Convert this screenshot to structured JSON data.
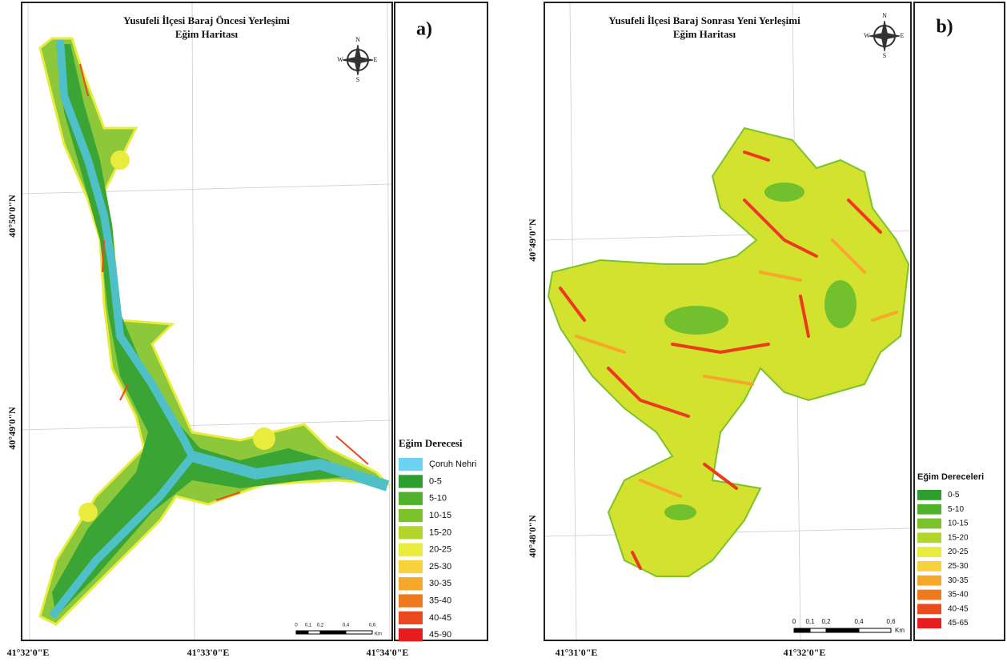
{
  "panels": [
    {
      "label": "a)",
      "title": [
        "Yusufeli İlçesi Baraj Öncesi Yerleşimi",
        "Eğim Haritası"
      ],
      "compass": {
        "n": "N",
        "s": "S",
        "e": "E",
        "w": "W"
      },
      "lat_labels": [
        "40°50'0\"N",
        "40°49'0\"N"
      ],
      "lon_labels": [
        "41°32'0\"E",
        "41°33'0\"E",
        "41°34'0\"E"
      ],
      "scale": {
        "labels": [
          "0",
          "0,1",
          "0,2",
          "0,4",
          "0,6"
        ],
        "unit": "Km"
      },
      "legend": {
        "title": "Eğim Derecesi",
        "items": [
          {
            "label": "Çoruh Nehri",
            "color": "#6cd3f5"
          },
          {
            "label": "0-5",
            "color": "#2e9e2e"
          },
          {
            "label": "5-10",
            "color": "#4fb22a"
          },
          {
            "label": "10-15",
            "color": "#7cc22a"
          },
          {
            "label": "15-20",
            "color": "#b3d62a"
          },
          {
            "label": "20-25",
            "color": "#e9ec3c"
          },
          {
            "label": "25-30",
            "color": "#f7d23a"
          },
          {
            "label": "30-35",
            "color": "#f6a82a"
          },
          {
            "label": "35-40",
            "color": "#ef7a1e"
          },
          {
            "label": "40-45",
            "color": "#e94a1e"
          },
          {
            "label": "45-90",
            "color": "#e81c1c"
          }
        ]
      }
    },
    {
      "label": "b)",
      "title": [
        "Yusufeli İlçesi Baraj Sonrası Yeni Yerleşimi",
        "Eğim Haritası"
      ],
      "compass": {
        "n": "N",
        "s": "S",
        "e": "E",
        "w": "W"
      },
      "lat_labels": [
        "40°49'0\"N",
        "40°48'0\"N"
      ],
      "lon_labels": [
        "41°31'0\"E",
        "41°32'0\"E"
      ],
      "scale": {
        "labels": [
          "0",
          "0,1",
          "0,2",
          "0,4",
          "0,6"
        ],
        "unit": "Km"
      },
      "legend": {
        "title": "Eğim Dereceleri",
        "items": [
          {
            "label": "0-5",
            "color": "#2e9e2e"
          },
          {
            "label": "5-10",
            "color": "#4fb22a"
          },
          {
            "label": "10-15",
            "color": "#7cc22a"
          },
          {
            "label": "15-20",
            "color": "#b3d62a"
          },
          {
            "label": "20-25",
            "color": "#e9ec3c"
          },
          {
            "label": "25-30",
            "color": "#f7d23a"
          },
          {
            "label": "30-35",
            "color": "#f6a82a"
          },
          {
            "label": "35-40",
            "color": "#ef7a1e"
          },
          {
            "label": "40-45",
            "color": "#e94a1e"
          },
          {
            "label": "45-65",
            "color": "#e81c1c"
          }
        ]
      }
    }
  ]
}
